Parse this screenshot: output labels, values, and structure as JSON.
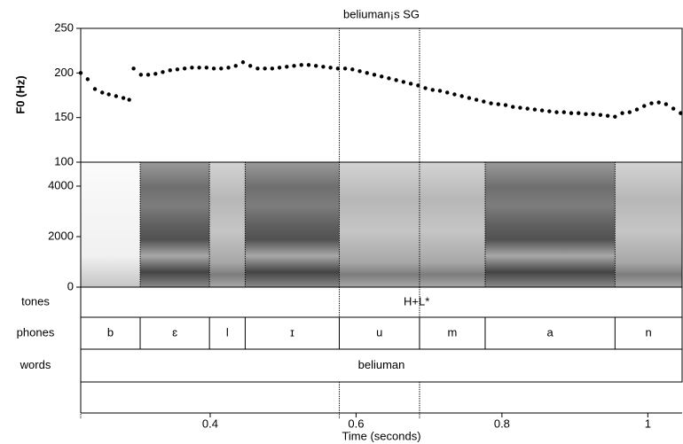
{
  "chart_data": {
    "type": "praat",
    "title": "beliuman¡s SG",
    "xlabel": "Time (seconds)",
    "xlim": [
      0.2225,
      1.047
    ],
    "xticks": [
      0.4,
      0.6,
      0.8,
      1
    ],
    "reference_lines": [
      0.2225,
      0.577,
      0.687
    ],
    "f0": {
      "ylabel": "F0 (Hz)",
      "ylim": [
        100,
        250
      ],
      "yticks": [
        100,
        150,
        200,
        250
      ],
      "color": "#000000",
      "x": [
        0.2225,
        0.232,
        0.242,
        0.252,
        0.261,
        0.271,
        0.281,
        0.289,
        0.292,
        0.295,
        0.305,
        0.315,
        0.325,
        0.335,
        0.345,
        0.355,
        0.365,
        0.375,
        0.385,
        0.395,
        0.405,
        0.415,
        0.425,
        0.435,
        0.445,
        0.455,
        0.465,
        0.475,
        0.485,
        0.495,
        0.505,
        0.515,
        0.525,
        0.535,
        0.545,
        0.555,
        0.565,
        0.575,
        0.585,
        0.595,
        0.605,
        0.615,
        0.625,
        0.635,
        0.645,
        0.655,
        0.665,
        0.675,
        0.685,
        0.695,
        0.705,
        0.715,
        0.725,
        0.735,
        0.745,
        0.755,
        0.765,
        0.775,
        0.785,
        0.795,
        0.805,
        0.815,
        0.825,
        0.835,
        0.845,
        0.855,
        0.865,
        0.875,
        0.885,
        0.895,
        0.905,
        0.915,
        0.925,
        0.935,
        0.945,
        0.955,
        0.965,
        0.975,
        0.985,
        0.995,
        1.005,
        1.015,
        1.025,
        1.035,
        1.045
      ],
      "values": [
        200,
        193,
        182,
        178,
        176,
        174,
        172,
        170,
        null,
        205,
        198,
        198,
        199,
        201,
        203,
        204,
        205,
        206,
        206,
        206,
        205,
        205,
        206,
        208,
        212,
        208,
        205,
        205,
        205,
        206,
        207,
        208,
        209,
        209,
        208,
        207,
        206,
        205,
        205,
        204,
        202,
        200,
        198,
        196,
        194,
        192,
        190,
        188,
        186,
        183,
        181,
        180,
        178,
        176,
        174,
        172,
        170,
        168,
        166,
        165,
        164,
        162,
        161,
        160,
        159,
        158,
        157,
        156,
        156,
        155,
        155,
        154,
        154,
        153,
        152,
        151,
        155,
        156,
        159,
        163,
        166,
        167,
        165,
        160,
        155
      ]
    },
    "spectrogram": {
      "ylim": [
        0,
        4947
      ],
      "yticks": [
        0,
        2000,
        4000
      ]
    },
    "tiers": [
      {
        "name": "tones",
        "points": [
          {
            "time": 0.683,
            "label": "H+L*"
          }
        ]
      },
      {
        "name": "phones",
        "intervals": [
          {
            "label": "b",
            "start": 0.2225,
            "end": 0.304
          },
          {
            "label": "ɛ",
            "start": 0.304,
            "end": 0.399
          },
          {
            "label": "l",
            "start": 0.399,
            "end": 0.448
          },
          {
            "label": "ɪ",
            "start": 0.448,
            "end": 0.577
          },
          {
            "label": "u",
            "start": 0.577,
            "end": 0.687
          },
          {
            "label": "m",
            "start": 0.687,
            "end": 0.777
          },
          {
            "label": "a",
            "start": 0.777,
            "end": 0.955
          },
          {
            "label": "n",
            "start": 0.955,
            "end": 1.047
          }
        ]
      },
      {
        "name": "words",
        "intervals": [
          {
            "label": "beliuman",
            "start": 0.2225,
            "end": 1.047
          }
        ]
      }
    ]
  }
}
